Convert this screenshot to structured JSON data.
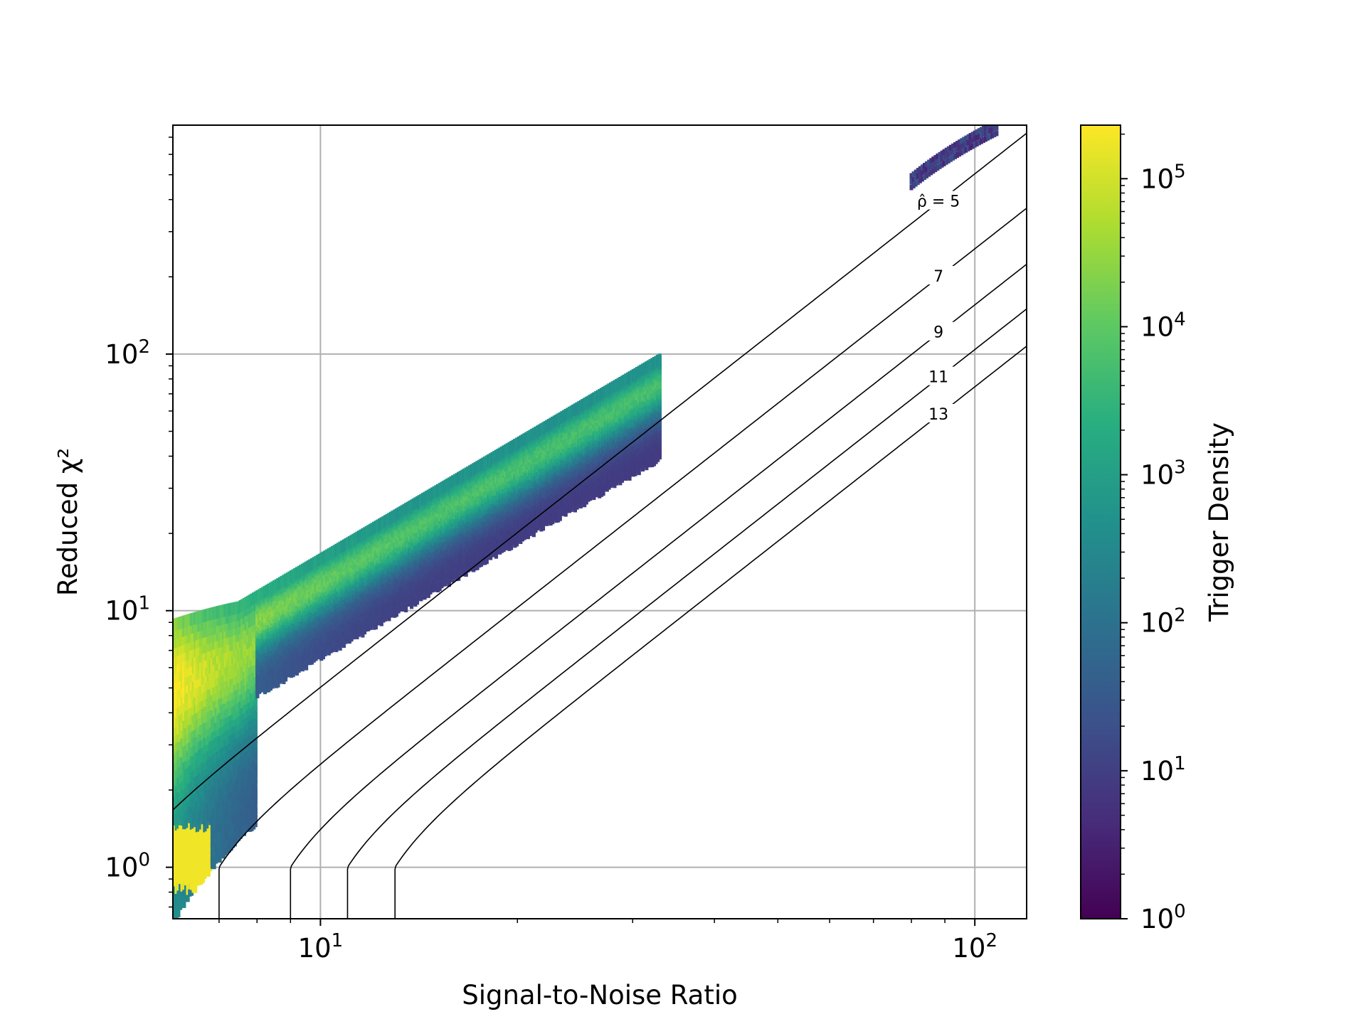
{
  "chart_data": {
    "type": "heatmap",
    "subtype": "hexbin",
    "title": "",
    "xlabel": "Signal-to-Noise Ratio",
    "ylabel": "Reduced χ²",
    "xscale": "log",
    "yscale": "log",
    "xlim": [
      5.95,
      120
    ],
    "ylim": [
      0.63,
      780
    ],
    "grid": true,
    "x_ticks": [
      {
        "base": "10",
        "exp": "1",
        "value": 10
      },
      {
        "base": "10",
        "exp": "2",
        "value": 100
      }
    ],
    "y_ticks": [
      {
        "base": "10",
        "exp": "0",
        "value": 1
      },
      {
        "base": "10",
        "exp": "1",
        "value": 10
      },
      {
        "base": "10",
        "exp": "2",
        "value": 100
      }
    ],
    "colorbar": {
      "label": "Trigger Density",
      "scale": "log",
      "colormap": "viridis",
      "range": [
        1,
        230000
      ],
      "ticks": [
        {
          "base": "10",
          "exp": "0",
          "value": 1
        },
        {
          "base": "10",
          "exp": "1",
          "value": 10
        },
        {
          "base": "10",
          "exp": "2",
          "value": 100
        },
        {
          "base": "10",
          "exp": "3",
          "value": 1000
        },
        {
          "base": "10",
          "exp": "4",
          "value": 10000
        },
        {
          "base": "10",
          "exp": "5",
          "value": 100000
        }
      ]
    },
    "contours": [
      {
        "label": "ρ̂ = 5",
        "rho": 5
      },
      {
        "label": "7",
        "rho": 7
      },
      {
        "label": "9",
        "rho": 9
      },
      {
        "label": "11",
        "rho": 11
      },
      {
        "label": "13",
        "rho": 13
      }
    ],
    "density_regions": [
      {
        "snr_range": [
          5.95,
          33
        ],
        "chisq_center": "approx 0.48*snr^1.5 (lower edge ~0.21*snr^1.5)",
        "peak_density": 230000,
        "peak_location": {
          "snr": 6.0,
          "chisq": 1.1
        }
      },
      {
        "snr_range": [
          80,
          108
        ],
        "chisq_range": [
          480,
          780
        ],
        "peak_density": 30
      }
    ]
  }
}
